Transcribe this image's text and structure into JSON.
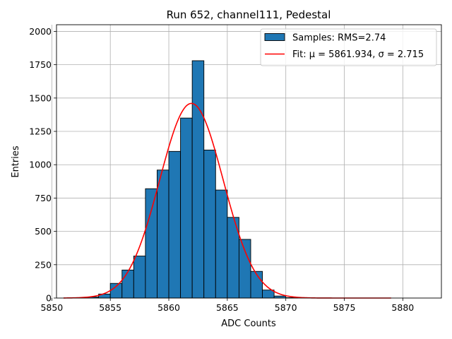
{
  "chart_data": {
    "type": "bar",
    "title": "Run 652, channel111, Pedestal",
    "xlabel": "ADC Counts",
    "ylabel": "Entries",
    "xlim": [
      5850.4,
      5883.3
    ],
    "ylim": [
      0,
      2050
    ],
    "x_ticks": [
      5850,
      5855,
      5860,
      5865,
      5870,
      5875,
      5880
    ],
    "y_ticks": [
      0,
      250,
      500,
      750,
      1000,
      1250,
      1500,
      1750,
      2000
    ],
    "grid": true,
    "legend_position": "top-right",
    "bins": [
      {
        "left": 5852,
        "right": 5853,
        "value": 3
      },
      {
        "left": 5853,
        "right": 5854,
        "value": 8
      },
      {
        "left": 5854,
        "right": 5855,
        "value": 30
      },
      {
        "left": 5855,
        "right": 5856,
        "value": 110
      },
      {
        "left": 5856,
        "right": 5857,
        "value": 210
      },
      {
        "left": 5857,
        "right": 5858,
        "value": 315
      },
      {
        "left": 5858,
        "right": 5859,
        "value": 820
      },
      {
        "left": 5859,
        "right": 5860,
        "value": 960
      },
      {
        "left": 5860,
        "right": 5861,
        "value": 1100
      },
      {
        "left": 5861,
        "right": 5862,
        "value": 1350
      },
      {
        "left": 5862,
        "right": 5863,
        "value": 1780
      },
      {
        "left": 5863,
        "right": 5864,
        "value": 1110
      },
      {
        "left": 5864,
        "right": 5865,
        "value": 810
      },
      {
        "left": 5865,
        "right": 5866,
        "value": 605
      },
      {
        "left": 5866,
        "right": 5867,
        "value": 440
      },
      {
        "left": 5867,
        "right": 5868,
        "value": 200
      },
      {
        "left": 5868,
        "right": 5869,
        "value": 60
      },
      {
        "left": 5869,
        "right": 5870,
        "value": 15
      },
      {
        "left": 5870,
        "right": 5871,
        "value": 3
      }
    ],
    "fit": {
      "mu": 5861.934,
      "sigma": 2.715,
      "amplitude": 1460,
      "x_range": [
        5851,
        5879
      ]
    },
    "series": [
      {
        "name": "Samples: RMS=2.74",
        "color": "#1f77b4",
        "kind": "histogram"
      },
      {
        "name": "Fit: μ = 5861.934, σ = 2.715",
        "color": "#ff0000",
        "kind": "line"
      }
    ]
  }
}
